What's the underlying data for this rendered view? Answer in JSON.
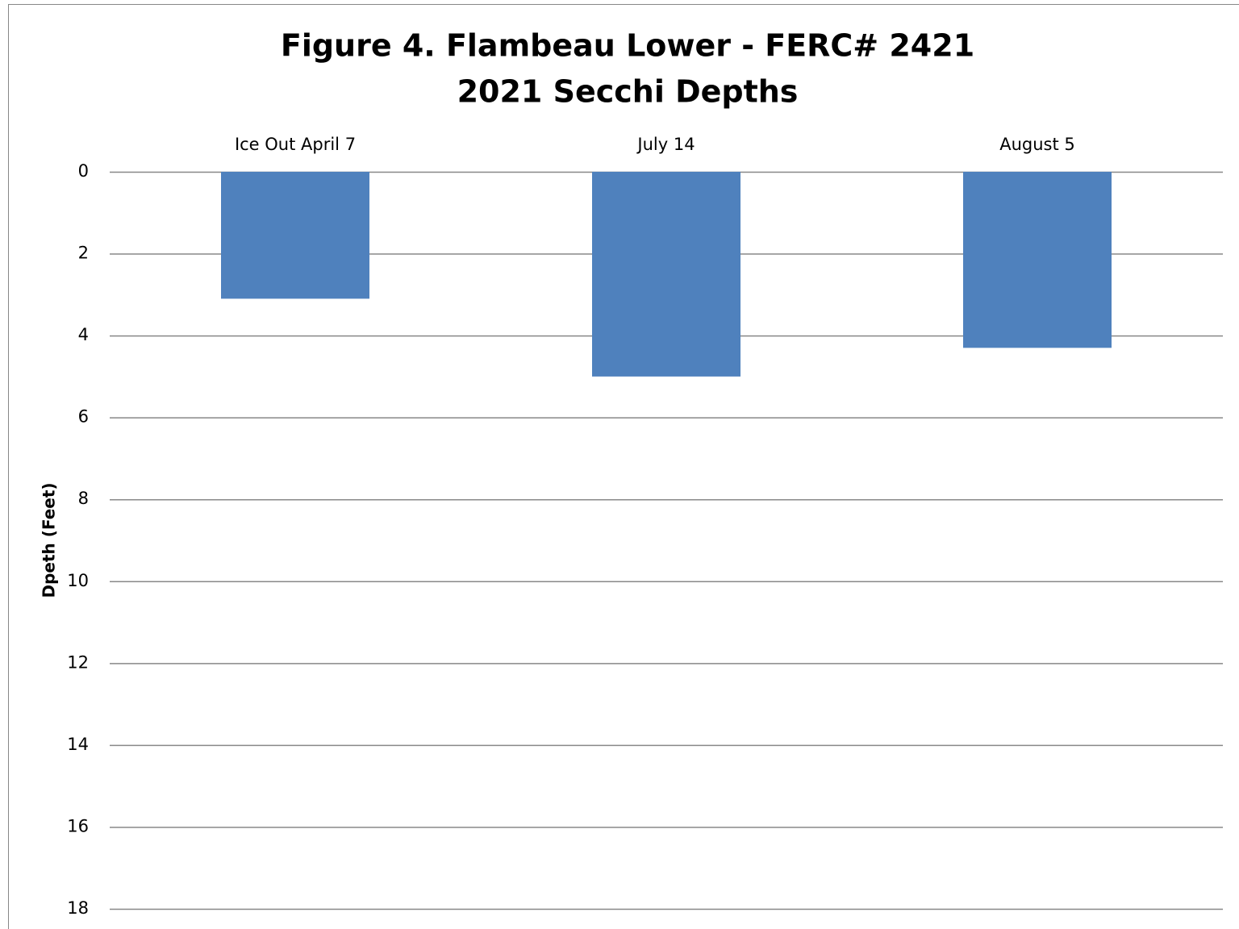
{
  "chart_data": {
    "type": "bar",
    "title": "Figure 4. Flambeau Lower - FERC# 2421",
    "subtitle": "2021 Secchi Depths",
    "ylabel": "Dpeth (Feet)",
    "categories": [
      "Ice Out April 7",
      "July 14",
      "August 5"
    ],
    "values": [
      3.1,
      5.0,
      4.3
    ],
    "color": "#4f81bd",
    "ylim": [
      0,
      18
    ],
    "yticks": [
      0,
      2,
      4,
      6,
      8,
      10,
      12,
      14,
      16,
      18
    ],
    "y_inverted": true,
    "category_axis": "top",
    "grid": true
  }
}
